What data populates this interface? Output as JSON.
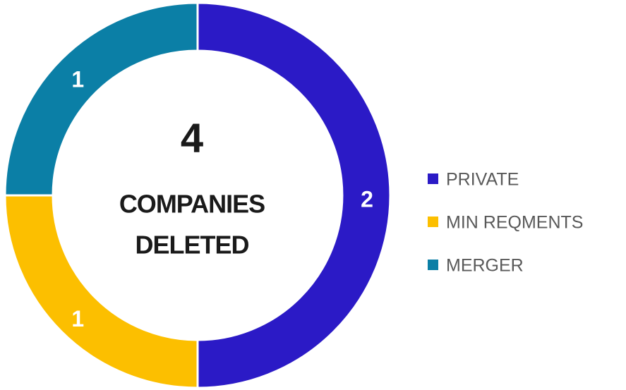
{
  "chart_data": {
    "type": "donut",
    "categories": [
      "PRIVATE",
      "MIN REQMENTS",
      "MERGER"
    ],
    "values": [
      2,
      1,
      1
    ],
    "colors": [
      "#2b1ac6",
      "#fcbf00",
      "#0b7fa6"
    ],
    "center_value": 4,
    "center_text": [
      "COMPANIES",
      "DELETED"
    ],
    "legend": "right"
  }
}
